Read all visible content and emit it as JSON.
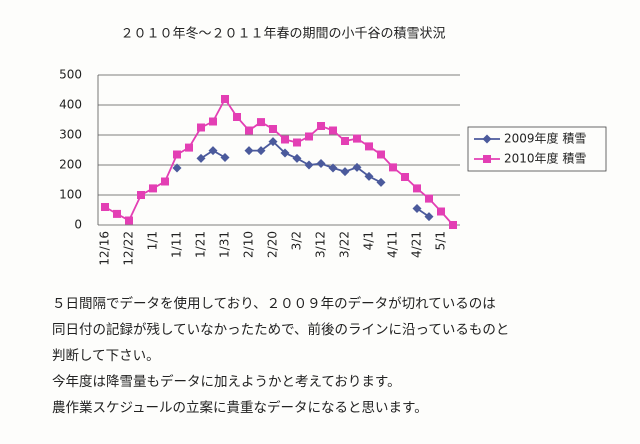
{
  "chart_data": {
    "type": "line",
    "title": "２０１０年冬～２０１１年春の期間の小千谷の積雪状況",
    "categories": [
      "12/16",
      null,
      "12/22",
      null,
      "1/1",
      null,
      "1/11",
      null,
      "1/21",
      null,
      "1/31",
      null,
      "2/10",
      null,
      "2/20",
      null,
      "3/2",
      null,
      "3/12",
      null,
      "3/22",
      null,
      "4/1",
      null,
      "4/11",
      null,
      "4/21",
      null,
      "5/1",
      null
    ],
    "series": [
      {
        "name": "2009年度 積雪",
        "color": "#4b5a9c",
        "marker": "diamond",
        "values": [
          null,
          null,
          null,
          null,
          null,
          null,
          190,
          null,
          222,
          248,
          225,
          null,
          248,
          248,
          278,
          240,
          222,
          200,
          205,
          190,
          178,
          192,
          162,
          142,
          null,
          null,
          55,
          28,
          null,
          null
        ]
      },
      {
        "name": "2010年度 積雪",
        "color": "#e33fb4",
        "marker": "square",
        "values": [
          60,
          37,
          15,
          100,
          122,
          145,
          235,
          258,
          325,
          345,
          420,
          360,
          315,
          343,
          320,
          285,
          275,
          295,
          330,
          315,
          280,
          288,
          262,
          235,
          192,
          160,
          122,
          88,
          45,
          0
        ]
      }
    ],
    "ylim": [
      0,
      500
    ],
    "yticks": [
      0,
      100,
      200,
      300,
      400,
      500
    ],
    "grid": true,
    "legend": "right"
  },
  "notes": [
    "５日間隔でデータを使用しており、２００９年のデータが切れているのは",
    "同日付の記録が残していなかったためで、前後のラインに沿っているものと",
    "判断して下さい。",
    "今年度は降雪量もデータに加えようかと考えております。",
    "農作業スケジュールの立案に貴重なデータになると思います。"
  ]
}
